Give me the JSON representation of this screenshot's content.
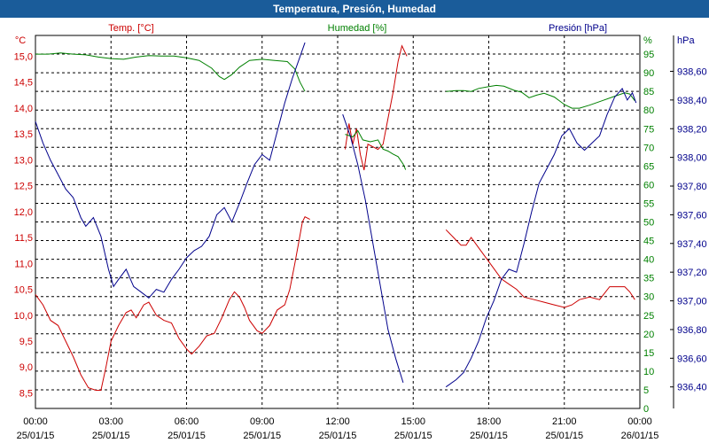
{
  "window": {
    "title": "Temperatura, Presión, Humedad"
  },
  "chart_data": {
    "type": "line",
    "title": "Temperatura, Presión, Humedad",
    "grid": true,
    "x_ticks": [
      {
        "hour": 0,
        "time": "00:00",
        "date": "25/01/15"
      },
      {
        "hour": 3,
        "time": "03:00",
        "date": "25/01/15"
      },
      {
        "hour": 6,
        "time": "06:00",
        "date": "25/01/15"
      },
      {
        "hour": 9,
        "time": "09:00",
        "date": "25/01/15"
      },
      {
        "hour": 12,
        "time": "12:00",
        "date": "25/01/15"
      },
      {
        "hour": 15,
        "time": "15:00",
        "date": "25/01/15"
      },
      {
        "hour": 18,
        "time": "18:00",
        "date": "25/01/15"
      },
      {
        "hour": 21,
        "time": "21:00",
        "date": "25/01/15"
      },
      {
        "hour": 24,
        "time": "00:00",
        "date": "26/01/15"
      }
    ],
    "xlim": [
      0,
      24
    ],
    "axes": {
      "temp": {
        "label": "Temp. [°C]",
        "unit": "°C",
        "color": "#cc0000",
        "side": "left",
        "range": [
          8.2,
          15.4
        ],
        "ticks": [
          "8,5",
          "9,0",
          "9,5",
          "10,0",
          "10,5",
          "11,0",
          "11,5",
          "12,0",
          "12,5",
          "13,0",
          "13,5",
          "14,0",
          "14,5",
          "15,0"
        ],
        "tick_values": [
          8.5,
          9.0,
          9.5,
          10.0,
          10.5,
          11.0,
          11.5,
          12.0,
          12.5,
          13.0,
          13.5,
          14.0,
          14.5,
          15.0
        ]
      },
      "hum": {
        "label": "Humedad [%]",
        "unit": "%",
        "color": "#008000",
        "side": "right",
        "range": [
          0,
          100
        ],
        "ticks": [
          "0",
          "5",
          "10",
          "15",
          "20",
          "25",
          "30",
          "35",
          "40",
          "45",
          "50",
          "55",
          "60",
          "65",
          "70",
          "75",
          "80",
          "85",
          "90",
          "95"
        ],
        "tick_values": [
          0,
          5,
          10,
          15,
          20,
          25,
          30,
          35,
          40,
          45,
          50,
          55,
          60,
          65,
          70,
          75,
          80,
          85,
          90,
          95
        ]
      },
      "pres": {
        "label": "Presión [hPa]",
        "unit": "hPa",
        "color": "#00008b",
        "side": "right-outer",
        "range": [
          936.25,
          938.85
        ],
        "ticks": [
          "936,40",
          "936,60",
          "936,80",
          "937,00",
          "937,20",
          "937,40",
          "937,60",
          "937,80",
          "938,00",
          "938,20",
          "938,40",
          "938,60"
        ],
        "tick_values": [
          936.4,
          936.6,
          936.8,
          937.0,
          937.2,
          937.4,
          937.6,
          937.8,
          938.0,
          938.2,
          938.4,
          938.6
        ]
      }
    },
    "series": [
      {
        "name": "Temp. [°C]",
        "axis": "temp",
        "color": "#cc0000",
        "segments": [
          [
            [
              0,
              10.4
            ],
            [
              0.3,
              10.2
            ],
            [
              0.6,
              9.9
            ],
            [
              0.9,
              9.8
            ],
            [
              1.2,
              9.5
            ],
            [
              1.5,
              9.2
            ],
            [
              1.8,
              8.85
            ],
            [
              2.1,
              8.6
            ],
            [
              2.4,
              8.55
            ],
            [
              2.6,
              8.55
            ],
            [
              2.8,
              9.0
            ],
            [
              3.0,
              9.5
            ],
            [
              3.3,
              9.8
            ],
            [
              3.6,
              10.05
            ],
            [
              3.8,
              10.1
            ],
            [
              4.0,
              9.95
            ],
            [
              4.3,
              10.2
            ],
            [
              4.5,
              10.25
            ],
            [
              4.8,
              10.0
            ],
            [
              5.1,
              9.9
            ],
            [
              5.4,
              9.85
            ],
            [
              5.7,
              9.55
            ],
            [
              6.0,
              9.35
            ],
            [
              6.2,
              9.25
            ],
            [
              6.5,
              9.4
            ],
            [
              6.8,
              9.6
            ],
            [
              7.1,
              9.65
            ],
            [
              7.4,
              9.95
            ],
            [
              7.7,
              10.3
            ],
            [
              7.9,
              10.45
            ],
            [
              8.1,
              10.35
            ],
            [
              8.3,
              10.15
            ],
            [
              8.5,
              9.9
            ],
            [
              8.8,
              9.7
            ],
            [
              9.0,
              9.65
            ],
            [
              9.3,
              9.8
            ],
            [
              9.6,
              10.1
            ],
            [
              9.9,
              10.2
            ],
            [
              10.1,
              10.5
            ],
            [
              10.3,
              11.0
            ],
            [
              10.45,
              11.4
            ],
            [
              10.6,
              11.8
            ],
            [
              10.7,
              11.9
            ],
            [
              10.9,
              11.85
            ]
          ],
          [
            [
              12.3,
              13.2
            ],
            [
              12.45,
              13.7
            ],
            [
              12.6,
              13.3
            ],
            [
              12.75,
              13.6
            ],
            [
              12.9,
              13.1
            ],
            [
              13.05,
              12.8
            ],
            [
              13.2,
              13.3
            ],
            [
              13.4,
              13.25
            ],
            [
              13.6,
              13.2
            ],
            [
              13.8,
              13.3
            ],
            [
              14.0,
              13.8
            ],
            [
              14.2,
              14.3
            ],
            [
              14.4,
              14.9
            ],
            [
              14.55,
              15.2
            ],
            [
              14.75,
              15.0
            ]
          ],
          [
            [
              16.3,
              11.65
            ],
            [
              16.6,
              11.5
            ],
            [
              16.9,
              11.35
            ],
            [
              17.1,
              11.35
            ],
            [
              17.3,
              11.5
            ],
            [
              17.6,
              11.3
            ],
            [
              17.9,
              11.1
            ],
            [
              18.2,
              10.9
            ],
            [
              18.5,
              10.7
            ],
            [
              18.8,
              10.6
            ],
            [
              19.1,
              10.5
            ],
            [
              19.4,
              10.35
            ],
            [
              19.8,
              10.3
            ],
            [
              20.2,
              10.25
            ],
            [
              20.6,
              10.2
            ],
            [
              21.0,
              10.15
            ],
            [
              21.3,
              10.2
            ],
            [
              21.6,
              10.3
            ],
            [
              22.0,
              10.35
            ],
            [
              22.4,
              10.3
            ],
            [
              22.8,
              10.55
            ],
            [
              23.1,
              10.55
            ],
            [
              23.4,
              10.55
            ],
            [
              23.6,
              10.45
            ],
            [
              23.8,
              10.3
            ]
          ]
        ]
      },
      {
        "name": "Humedad [%]",
        "axis": "hum",
        "color": "#008000",
        "segments": [
          [
            [
              0,
              95
            ],
            [
              0.5,
              95
            ],
            [
              1.0,
              95.3
            ],
            [
              1.5,
              95
            ],
            [
              2.0,
              94.8
            ],
            [
              2.5,
              94.2
            ],
            [
              3.0,
              93.8
            ],
            [
              3.5,
              93.6
            ],
            [
              4.0,
              94.2
            ],
            [
              4.5,
              94.6
            ],
            [
              5.0,
              94.5
            ],
            [
              5.5,
              94.5
            ],
            [
              6.0,
              94
            ],
            [
              6.5,
              93.3
            ],
            [
              7.0,
              91.2
            ],
            [
              7.3,
              89
            ],
            [
              7.5,
              88.2
            ],
            [
              7.8,
              89.5
            ],
            [
              8.1,
              91.5
            ],
            [
              8.5,
              93.3
            ],
            [
              9.0,
              93.6
            ],
            [
              9.5,
              93.3
            ],
            [
              10.0,
              93
            ],
            [
              10.3,
              91
            ],
            [
              10.5,
              87.5
            ],
            [
              10.7,
              85
            ]
          ],
          [
            [
              12.3,
              73.5
            ],
            [
              12.6,
              72.8
            ],
            [
              12.8,
              74.5
            ],
            [
              13.0,
              72
            ],
            [
              13.3,
              71.5
            ],
            [
              13.6,
              72
            ],
            [
              13.8,
              69.5
            ],
            [
              14.0,
              69
            ],
            [
              14.2,
              68.2
            ],
            [
              14.4,
              67.5
            ],
            [
              14.6,
              65.5
            ],
            [
              14.7,
              64
            ]
          ],
          [
            [
              16.3,
              85
            ],
            [
              16.7,
              85.2
            ],
            [
              17.0,
              85.2
            ],
            [
              17.3,
              85
            ],
            [
              17.6,
              85.8
            ],
            [
              18.0,
              86.3
            ],
            [
              18.3,
              86.6
            ],
            [
              18.6,
              86.4
            ],
            [
              19.0,
              85.3
            ],
            [
              19.3,
              84.8
            ],
            [
              19.6,
              83.3
            ],
            [
              19.9,
              84
            ],
            [
              20.2,
              84.5
            ],
            [
              20.6,
              83.5
            ],
            [
              21.0,
              81.5
            ],
            [
              21.3,
              80.5
            ],
            [
              21.6,
              80.5
            ],
            [
              22.0,
              81.3
            ],
            [
              22.5,
              82.5
            ],
            [
              23.0,
              83.7
            ],
            [
              23.4,
              84.6
            ],
            [
              23.6,
              84.3
            ],
            [
              23.8,
              82.5
            ]
          ]
        ]
      },
      {
        "name": "Presión [hPa]",
        "axis": "pres",
        "color": "#00008b",
        "segments": [
          [
            [
              0,
              938.25
            ],
            [
              0.3,
              938.1
            ],
            [
              0.6,
              937.98
            ],
            [
              0.9,
              937.88
            ],
            [
              1.2,
              937.78
            ],
            [
              1.5,
              937.72
            ],
            [
              1.8,
              937.58
            ],
            [
              2.0,
              937.52
            ],
            [
              2.3,
              937.58
            ],
            [
              2.6,
              937.45
            ],
            [
              2.9,
              937.22
            ],
            [
              3.1,
              937.1
            ],
            [
              3.3,
              937.15
            ],
            [
              3.6,
              937.22
            ],
            [
              3.9,
              937.1
            ],
            [
              4.2,
              937.06
            ],
            [
              4.5,
              937.02
            ],
            [
              4.8,
              937.08
            ],
            [
              5.1,
              937.06
            ],
            [
              5.4,
              937.15
            ],
            [
              5.7,
              937.22
            ],
            [
              6.0,
              937.3
            ],
            [
              6.3,
              937.35
            ],
            [
              6.6,
              937.38
            ],
            [
              6.9,
              937.45
            ],
            [
              7.2,
              937.6
            ],
            [
              7.5,
              937.65
            ],
            [
              7.8,
              937.55
            ],
            [
              8.1,
              937.68
            ],
            [
              8.4,
              937.82
            ],
            [
              8.7,
              937.95
            ],
            [
              9.0,
              938.02
            ],
            [
              9.3,
              937.98
            ],
            [
              9.6,
              938.18
            ],
            [
              9.9,
              938.38
            ],
            [
              10.2,
              938.55
            ],
            [
              10.5,
              938.7
            ],
            [
              10.7,
              938.8
            ]
          ],
          [
            [
              12.2,
              938.3
            ],
            [
              12.5,
              938.15
            ],
            [
              12.8,
              937.95
            ],
            [
              13.1,
              937.7
            ],
            [
              13.4,
              937.4
            ],
            [
              13.7,
              937.1
            ],
            [
              14.0,
              936.8
            ],
            [
              14.3,
              936.6
            ],
            [
              14.6,
              936.43
            ]
          ],
          [
            [
              16.3,
              936.4
            ],
            [
              16.7,
              936.45
            ],
            [
              17.0,
              936.5
            ],
            [
              17.3,
              936.6
            ],
            [
              17.6,
              936.72
            ],
            [
              17.9,
              936.88
            ],
            [
              18.2,
              937.0
            ],
            [
              18.5,
              937.15
            ],
            [
              18.8,
              937.22
            ],
            [
              19.1,
              937.2
            ],
            [
              19.4,
              937.4
            ],
            [
              19.7,
              937.62
            ],
            [
              20.0,
              937.82
            ],
            [
              20.3,
              937.92
            ],
            [
              20.6,
              938.02
            ],
            [
              20.9,
              938.15
            ],
            [
              21.2,
              938.2
            ],
            [
              21.5,
              938.1
            ],
            [
              21.8,
              938.05
            ],
            [
              22.1,
              938.1
            ],
            [
              22.4,
              938.15
            ],
            [
              22.7,
              938.3
            ],
            [
              23.0,
              938.42
            ],
            [
              23.3,
              938.48
            ],
            [
              23.5,
              938.4
            ],
            [
              23.7,
              938.45
            ],
            [
              23.85,
              938.38
            ]
          ]
        ]
      }
    ]
  }
}
